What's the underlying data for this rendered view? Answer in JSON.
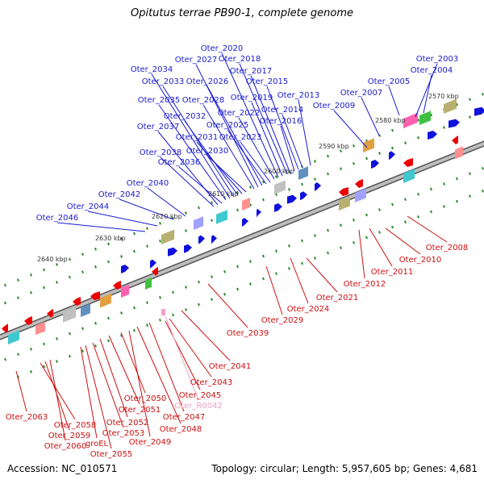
{
  "title": "Opitutus terrae PB90-1, complete genome",
  "accession": "Accession: NC_010571",
  "summary": "Topology: circular; Length: 5,957,605 bp; Genes: 4,681",
  "colors": {
    "forward": "#1010dd",
    "reverse": "#ee0000",
    "rna": "#f0a0c8",
    "backbone": "#8a8a8a",
    "tick": "#2a8a2a"
  },
  "scale_labels": [
    "2570 kbp",
    "2580 kbp",
    "2590 kbp",
    "2600 kbp",
    "2610 kbp",
    "2620 kbp",
    "2630 kbp",
    "2640 kbp"
  ],
  "top_genes": [
    "Oter_2003",
    "Oter_2004",
    "Oter_2005",
    "Oter_2007",
    "Oter_2009",
    "Oter_2013",
    "Oter_2014",
    "Oter_2015",
    "Oter_2016",
    "Oter_2017",
    "Oter_2018",
    "Oter_2019",
    "Oter_2020",
    "Oter_2022",
    "Oter_2023",
    "Oter_2025",
    "Oter_2026",
    "Oter_2027",
    "Oter_2028",
    "Oter_2030",
    "Oter_2031",
    "Oter_2032",
    "Oter_2033",
    "Oter_2034",
    "Oter_2035",
    "Oter_2036",
    "Oter_2037",
    "Oter_2038",
    "Oter_2040",
    "Oter_2042",
    "Oter_2044",
    "Oter_2046"
  ],
  "right_genes": [
    "Oter_2008",
    "Oter_2010",
    "Oter_2011",
    "Oter_2012",
    "Oter_2021",
    "Oter_2024",
    "Oter_2029",
    "Oter_2039",
    "Oter_2041",
    "Oter_2043",
    "Oter_2045"
  ],
  "bottom_genes": [
    "Oter_2063",
    "Oter_2058",
    "Oter_2059",
    "Oter_2060",
    "groEL",
    "Oter_2055",
    "Oter_2053",
    "Oter_2052",
    "Oter_2051",
    "Oter_2050",
    "Oter_2049",
    "Oter_2048",
    "Oter_2047",
    "Oter_R0042"
  ]
}
